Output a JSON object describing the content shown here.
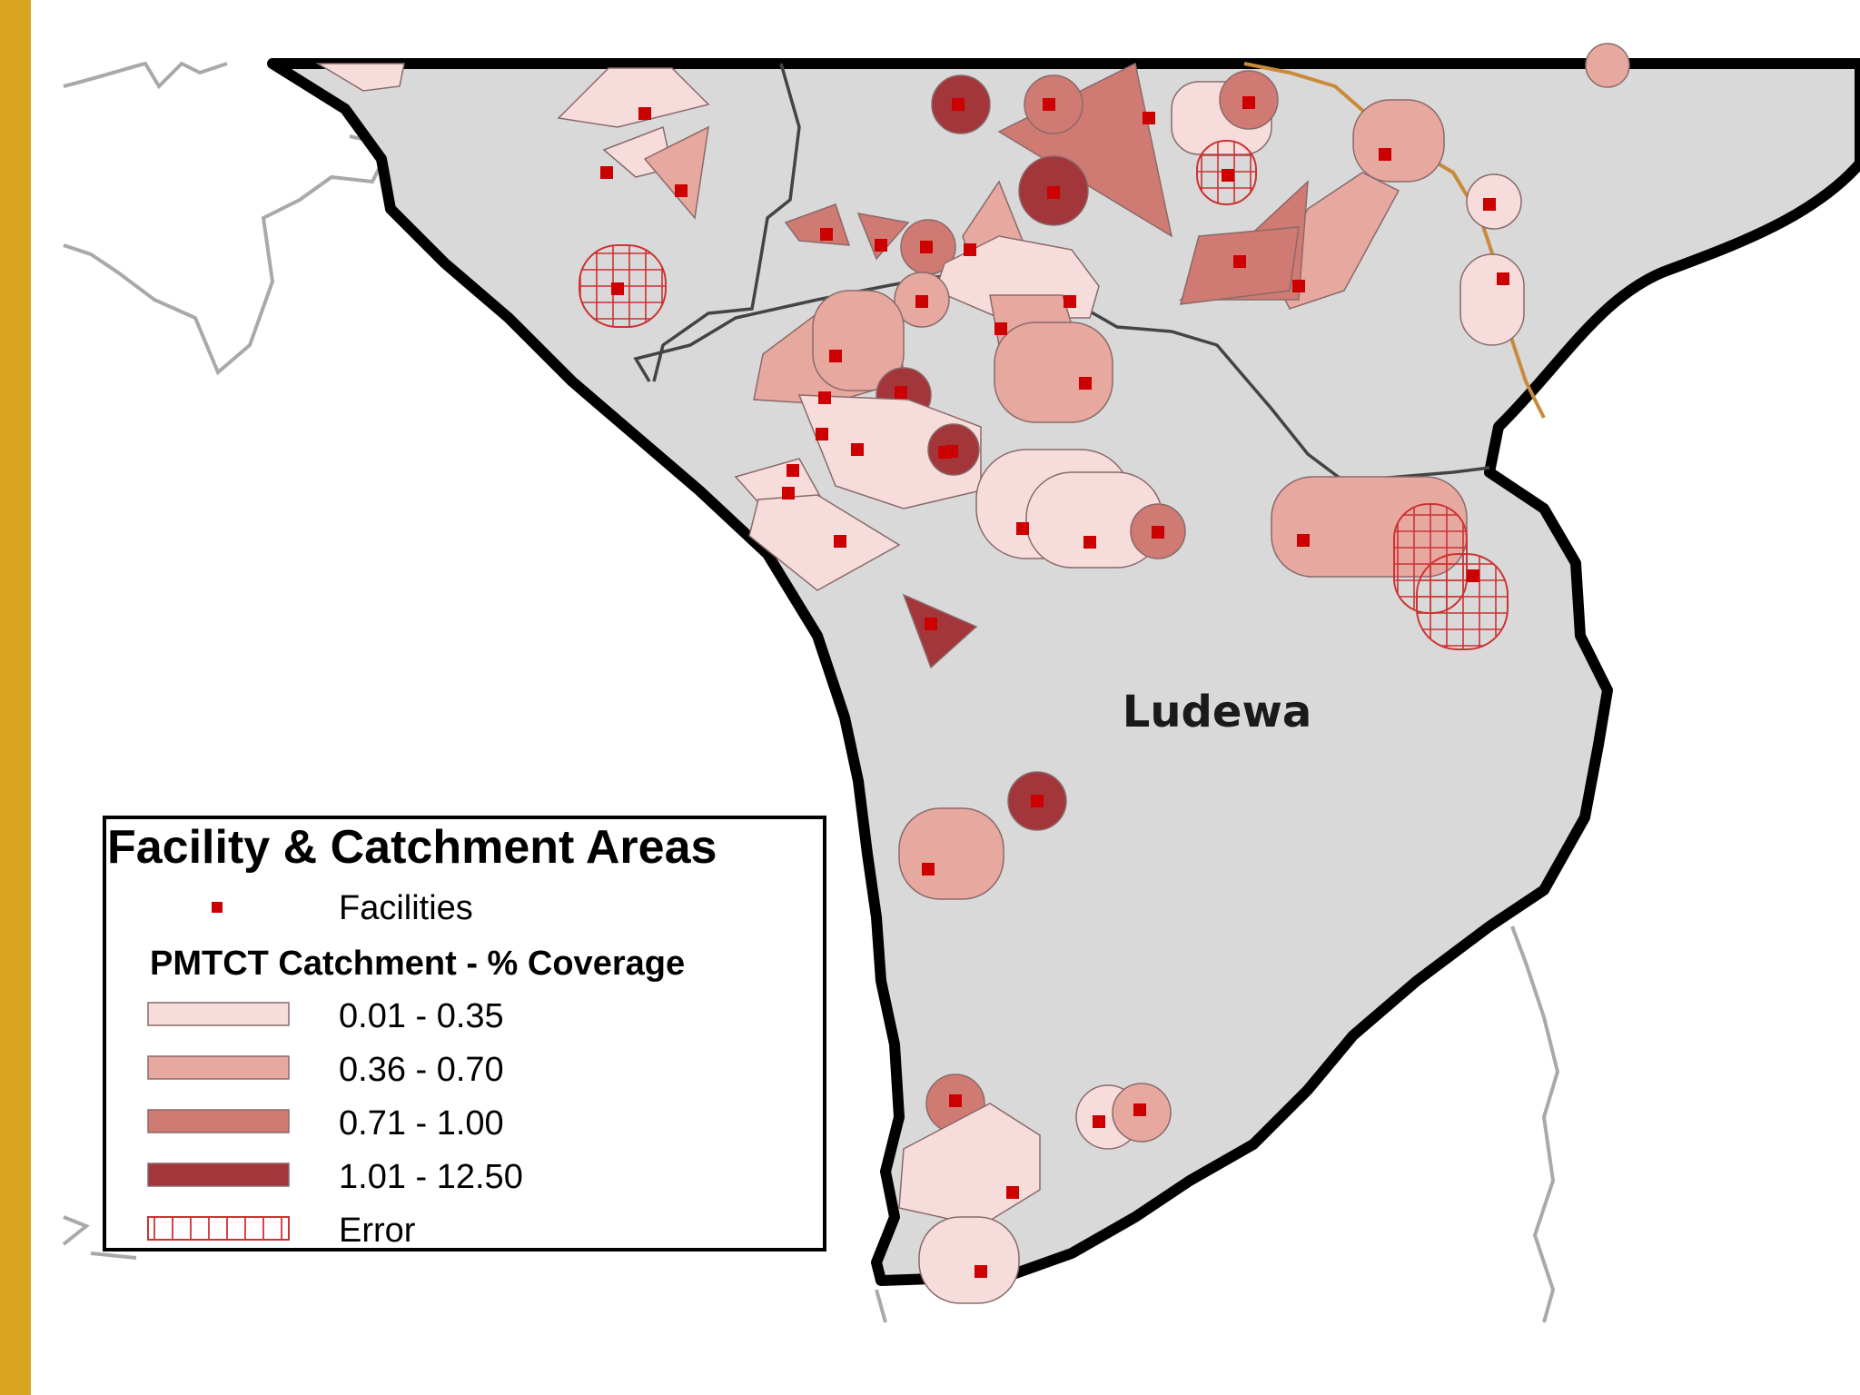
{
  "map": {
    "region_label": "Ludewa",
    "colors": {
      "frame_bar": "#d9a520",
      "land_fill": "#d9d9d9",
      "boundary": "#000000",
      "inner_boundary": "#444444",
      "neighbor_line": "#a9a9a9",
      "river_line": "#c98a3a",
      "facility": "#cc0000",
      "error_hatch": "#cc3333"
    }
  },
  "legend": {
    "title": "Facility & Catchment Areas",
    "facilities_label": "Facilities",
    "subtitle": "PMTCT Catchment - % Coverage",
    "classes": [
      {
        "label": "0.01 - 0.35",
        "color": "#f7dcdc"
      },
      {
        "label": "0.36 - 0.70",
        "color": "#e7a8a0"
      },
      {
        "label": "0.71 - 1.00",
        "color": "#cf7a72"
      },
      {
        "label": "1.01 - 12.50",
        "color": "#a2363b"
      }
    ],
    "error_label": "Error"
  }
}
